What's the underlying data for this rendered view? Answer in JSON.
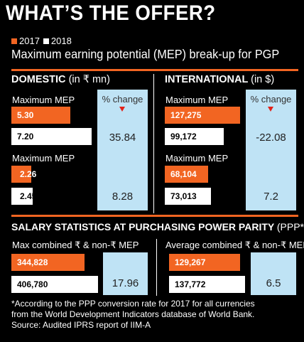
{
  "headline": "WHAT’S THE OFFER?",
  "legend": {
    "y2017": "2017",
    "y2018": "2018"
  },
  "subtitle": "Maximum earning potential (MEP) break-up for PGP",
  "colors": {
    "y2017": "#f26522",
    "y2018": "#ffffff",
    "change_box": "#bfe3f5",
    "arrow": "#e2231a"
  },
  "domestic": {
    "title": "DOMESTIC",
    "unit": "(in ₹ mn)",
    "label1": "Maximum MEP",
    "label2": "Maximum MEP",
    "pc_head": "% change",
    "v2017_a": "5.30",
    "v2018_a": "7.20",
    "v2017_b": "2.26",
    "v2018_b": "2.45",
    "pc_a": "35.84",
    "pc_b": "8.28"
  },
  "international": {
    "title": "INTERNATIONAL",
    "unit": "(in $)",
    "label1": "Maximum MEP",
    "label2": "Maximum MEP",
    "pc_head": "% change",
    "v2017_a": "127,275",
    "v2018_a": "99,172",
    "v2017_b": "68,104",
    "v2018_b": "73,013",
    "pc_a": "-22.08",
    "pc_b": "7.2"
  },
  "ppp": {
    "title": "SALARY STATISTICS AT PURCHASING POWER PARITY",
    "unit": "(PPP*)",
    "left_label": "Max combined ₹ & non-₹ MEP",
    "right_label": "Average combined ₹ & non-₹ MEP",
    "left_2017": "344,828",
    "left_2018": "406,780",
    "left_pc": "17.96",
    "right_2017": "129,267",
    "right_2018": "137,772",
    "right_pc": "6.5"
  },
  "footnote": {
    "line1": "*According to the PPP conversion rate for 2017 for all currencies",
    "line2": "from the World Development Indicators database of World Bank.",
    "line3": "Source: Audited IPRS report of IIM-A"
  },
  "chart_data": [
    {
      "type": "bar",
      "title": "DOMESTIC",
      "ylabel": "in ₹ mn",
      "categories": [
        "Maximum MEP",
        "Maximum MEP"
      ],
      "series": [
        {
          "name": "2017",
          "values": [
            5.3,
            2.26
          ]
        },
        {
          "name": "2018",
          "values": [
            7.2,
            2.45
          ]
        }
      ],
      "percent_change": [
        35.84,
        8.28
      ]
    },
    {
      "type": "bar",
      "title": "INTERNATIONAL",
      "ylabel": "in $",
      "categories": [
        "Maximum MEP",
        "Maximum MEP"
      ],
      "series": [
        {
          "name": "2017",
          "values": [
            127275,
            68104
          ]
        },
        {
          "name": "2018",
          "values": [
            99172,
            73013
          ]
        }
      ],
      "percent_change": [
        -22.08,
        7.2
      ]
    },
    {
      "type": "bar",
      "title": "SALARY STATISTICS AT PURCHASING POWER PARITY",
      "ylabel": "PPP*",
      "categories": [
        "Max combined ₹ & non-₹ MEP",
        "Average combined ₹ & non-₹ MEP"
      ],
      "series": [
        {
          "name": "2017",
          "values": [
            344828,
            129267
          ]
        },
        {
          "name": "2018",
          "values": [
            406780,
            137772
          ]
        }
      ],
      "percent_change": [
        17.96,
        6.5
      ]
    }
  ]
}
